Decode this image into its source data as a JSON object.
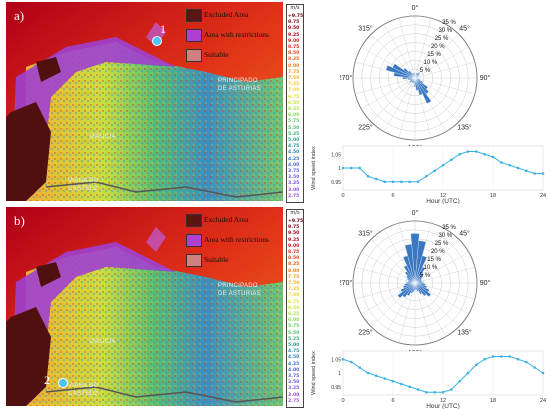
{
  "panels": [
    {
      "id": "a",
      "label": "a)",
      "marker_number": "1",
      "rose_values": [
        2,
        2,
        3,
        3,
        4,
        3,
        2,
        2,
        2,
        2,
        2,
        3,
        5,
        9,
        11,
        16,
        10,
        7,
        5,
        3,
        3,
        3,
        3,
        4,
        3,
        3,
        4,
        7,
        12,
        17,
        14,
        8,
        5,
        3,
        3,
        3
      ],
      "line_values": [
        1.0,
        1.0,
        1.0,
        0.97,
        0.96,
        0.95,
        0.95,
        0.95,
        0.95,
        0.95,
        0.97,
        0.99,
        1.01,
        1.03,
        1.05,
        1.06,
        1.06,
        1.05,
        1.04,
        1.02,
        1.01,
        1.0,
        0.99,
        0.98,
        0.98
      ],
      "line_yticks": [
        "1.05",
        "1",
        "0.95"
      ]
    },
    {
      "id": "b",
      "label": "b)",
      "marker_number": "2",
      "rose_values": [
        28,
        24,
        16,
        10,
        7,
        5,
        4,
        4,
        4,
        5,
        6,
        7,
        9,
        11,
        9,
        7,
        5,
        4,
        4,
        5,
        6,
        8,
        10,
        12,
        9,
        7,
        6,
        5,
        4,
        4,
        5,
        6,
        8,
        11,
        16,
        22
      ],
      "line_values": [
        1.05,
        1.04,
        1.02,
        1.0,
        0.99,
        0.98,
        0.97,
        0.96,
        0.95,
        0.94,
        0.93,
        0.93,
        0.93,
        0.94,
        0.97,
        1.0,
        1.03,
        1.05,
        1.06,
        1.06,
        1.06,
        1.05,
        1.04,
        1.02,
        1.0
      ],
      "line_yticks": [
        "1.05",
        "1",
        "0.95"
      ]
    }
  ],
  "legend": {
    "excluded": "Excluded Area",
    "restricted": "Area with restrictions",
    "suitable": "Suitable",
    "colors": {
      "excluded": "#5a1414",
      "restricted": "#b040d0",
      "suitable": "#d08080"
    }
  },
  "map_labels": {
    "region1": "PRINCIPADO",
    "region1b": "DE ASTURIAS",
    "region2": "GALICIA",
    "region3": "VIANA DO",
    "region3b": "CASTELO"
  },
  "colorbar": {
    "unit": "m/s",
    "ticks": [
      "+9.75",
      "9.75",
      "9.50",
      "9.25",
      "9.00",
      "8.75",
      "8.50",
      "8.25",
      "8.00",
      "7.75",
      "7.50",
      "7.25",
      "7.00",
      "6.75",
      "6.50",
      "6.25",
      "6.00",
      "5.75",
      "5.50",
      "5.25",
      "5.00",
      "4.75",
      "4.50",
      "4.25",
      "4.00",
      "3.75",
      "3.50",
      "3.25",
      "3.00",
      "2.75"
    ],
    "colors": [
      "#6e0014",
      "#8a0018",
      "#a8001c",
      "#c40020",
      "#d8141c",
      "#e82a1a",
      "#f24418",
      "#f86018",
      "#fc7c1a",
      "#fe961e",
      "#feae24",
      "#fec42a",
      "#f6d630",
      "#e6e238",
      "#c8e840",
      "#a8e44a",
      "#88dc54",
      "#6ad060",
      "#4ec46e",
      "#3ab47e",
      "#2ea492",
      "#2c94a8",
      "#3086bc",
      "#3a78cc",
      "#4a6cd8",
      "#5c62e0",
      "#705ae6",
      "#8454ea",
      "#9850ec",
      "#ac50ea"
    ]
  },
  "rose": {
    "directions": [
      "0°",
      "45°",
      "90°",
      "135°",
      "180°",
      "225°",
      "270°",
      "315°"
    ],
    "rings": [
      "5 %",
      "10 %",
      "15 %",
      "20 %",
      "25 %",
      "30 %",
      "35 %"
    ],
    "bar_color": "#3a78c2"
  },
  "line": {
    "xticks": [
      "0",
      "6",
      "12",
      "18",
      "24"
    ],
    "xlabel": "Hour (UTC)",
    "ylabel": "Wind speed index",
    "color": "#3ab0e8"
  }
}
